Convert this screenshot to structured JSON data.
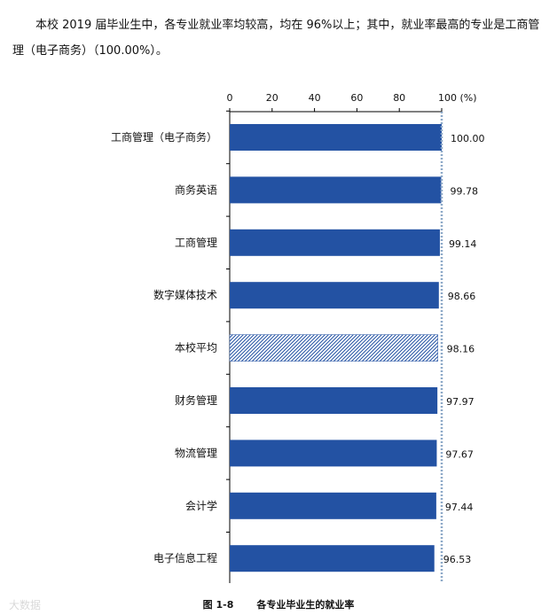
{
  "intro": "本校 2019 届毕业生中，各专业就业率均较高，均在 96%以上；其中，就业率最高的专业是工商管理（电子商务）（100.00%）。",
  "watermark": "大数据",
  "caption": {
    "figure": "图 1-8",
    "title": "各专业毕业生的就业率"
  },
  "colors": {
    "bar": "#2352a3",
    "hatch_line": "#2352a3",
    "reference_line": "#8ea9c8",
    "axis": "#000000"
  },
  "chart_data": {
    "type": "bar",
    "orientation": "horizontal",
    "axis_position": "top",
    "xlim": [
      0,
      100
    ],
    "ticks": [
      "0",
      "20",
      "40",
      "60",
      "80",
      "100 (%)"
    ],
    "tick_values": [
      0,
      20,
      40,
      60,
      80,
      100
    ],
    "reference_line": 100,
    "categories": [
      "工商管理（电子商务）",
      "商务英语",
      "工商管理",
      "数字媒体技术",
      "本校平均",
      "财务管理",
      "物流管理",
      "会计学",
      "电子信息工程"
    ],
    "values": [
      100.0,
      99.78,
      99.14,
      98.66,
      98.16,
      97.97,
      97.67,
      97.44,
      96.53
    ],
    "labels": [
      "100.00",
      "99.78",
      "99.14",
      "98.66",
      "98.16",
      "97.97",
      "97.67",
      "97.44",
      "96.53"
    ],
    "hatched": [
      false,
      false,
      false,
      false,
      true,
      false,
      false,
      false,
      false
    ]
  }
}
